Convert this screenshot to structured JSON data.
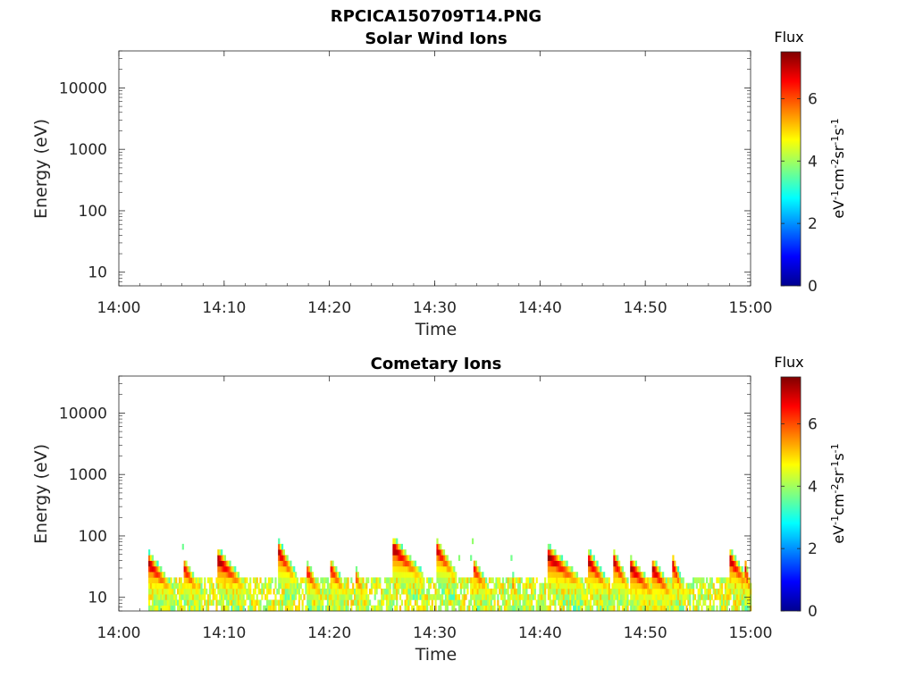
{
  "figure": {
    "title": "RPCICA150709T14.PNG"
  },
  "colorbar": {
    "label": "Flux",
    "unit_html": "eV<tspan baseline-shift='super' font-size='11'>-1</tspan>cm<tspan baseline-shift='super' font-size='11'>-2</tspan>sr<tspan baseline-shift='super' font-size='11'>-1</tspan>s<tspan baseline-shift='super' font-size='11'>-1</tspan>",
    "ticks": [
      0,
      2,
      4,
      6
    ],
    "range": [
      0,
      7.5
    ],
    "colormap": "jet"
  },
  "chart_data": [
    {
      "type": "heatmap",
      "title": "Solar Wind Ions",
      "xlabel": "Time",
      "ylabel": "Energy (eV)",
      "x_ticks": [
        "14:00",
        "14:10",
        "14:20",
        "14:30",
        "14:40",
        "14:50",
        "15:00"
      ],
      "x_range_minutes": [
        0,
        60
      ],
      "y_ticks": [
        10,
        100,
        1000,
        10000
      ],
      "y_scale": "log",
      "y_range": [
        6,
        40000
      ],
      "events": []
    },
    {
      "type": "heatmap",
      "title": "Cometary Ions",
      "xlabel": "Time",
      "ylabel": "Energy (eV)",
      "x_ticks": [
        "14:00",
        "14:10",
        "14:20",
        "14:30",
        "14:40",
        "14:50",
        "15:00"
      ],
      "x_range_minutes": [
        0,
        60
      ],
      "y_ticks": [
        10,
        100,
        1000,
        10000
      ],
      "y_scale": "log",
      "y_range": [
        6,
        40000
      ],
      "coverage_minutes": [
        2.8,
        60
      ],
      "background_band_eV": [
        6,
        20
      ],
      "events": [
        {
          "t": 2.8,
          "w": 2.2,
          "peak_eV": 35,
          "flux": 7.2
        },
        {
          "t": 6.1,
          "w": 1.6,
          "peak_eV": 30,
          "flux": 6.8
        },
        {
          "t": 9.4,
          "w": 2.4,
          "peak_eV": 40,
          "flux": 7.4
        },
        {
          "t": 15.1,
          "w": 1.6,
          "peak_eV": 55,
          "flux": 7.2
        },
        {
          "t": 17.9,
          "w": 1.4,
          "peak_eV": 25,
          "flux": 6.5
        },
        {
          "t": 20.1,
          "w": 1.6,
          "peak_eV": 28,
          "flux": 6.6
        },
        {
          "t": 22.4,
          "w": 1.2,
          "peak_eV": 22,
          "flux": 6.2
        },
        {
          "t": 26.1,
          "w": 2.5,
          "peak_eV": 60,
          "flux": 7.3
        },
        {
          "t": 30.1,
          "w": 1.8,
          "peak_eV": 60,
          "flux": 7.1
        },
        {
          "t": 33.6,
          "w": 1.6,
          "peak_eV": 30,
          "flux": 6.7
        },
        {
          "t": 37.3,
          "w": 0.8,
          "peak_eV": 18,
          "flux": 5.9
        },
        {
          "t": 40.8,
          "w": 3.0,
          "peak_eV": 45,
          "flux": 7.4
        },
        {
          "t": 44.6,
          "w": 1.8,
          "peak_eV": 38,
          "flux": 7.2
        },
        {
          "t": 46.9,
          "w": 1.4,
          "peak_eV": 40,
          "flux": 7.3
        },
        {
          "t": 48.6,
          "w": 2.2,
          "peak_eV": 30,
          "flux": 7.3
        },
        {
          "t": 50.7,
          "w": 1.8,
          "peak_eV": 28,
          "flux": 7.2
        },
        {
          "t": 52.5,
          "w": 1.0,
          "peak_eV": 35,
          "flux": 7.2
        },
        {
          "t": 58.0,
          "w": 1.8,
          "peak_eV": 40,
          "flux": 7.2
        },
        {
          "t": 59.4,
          "w": 0.6,
          "peak_eV": 30,
          "flux": 7.0
        }
      ]
    }
  ]
}
